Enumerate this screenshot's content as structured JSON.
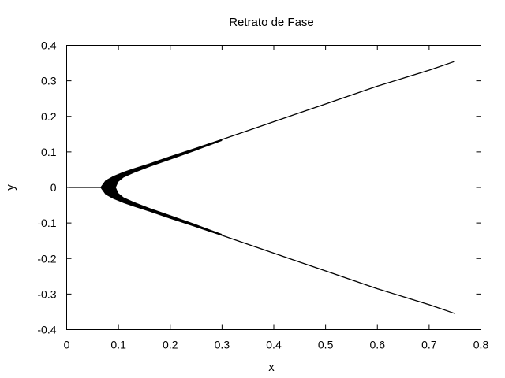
{
  "chart_data": {
    "type": "line",
    "title": "Retrato de Fase",
    "xlabel": "x",
    "ylabel": "y",
    "xlim": [
      0,
      0.8
    ],
    "ylim": [
      -0.4,
      0.4
    ],
    "x_ticks": [
      0,
      0.1,
      0.2,
      0.3,
      0.4,
      0.5,
      0.6,
      0.7,
      0.8
    ],
    "x_tick_labels": [
      "0",
      "0.1",
      "0.2",
      "0.3",
      "0.4",
      "0.5",
      "0.6",
      "0.7",
      "0.8"
    ],
    "y_ticks": [
      0.4,
      0.3,
      0.2,
      0.1,
      0,
      -0.1,
      -0.2,
      -0.3,
      -0.4
    ],
    "y_tick_labels": [
      "0.4",
      "0.3",
      "0.2",
      "0.1",
      "0",
      "-0.1",
      "-0.2",
      "-0.3",
      "-0.4"
    ],
    "grid": false,
    "legend": "none",
    "line_color": "#000000",
    "series": [
      {
        "x": [
          0.005,
          0.07,
          0.08,
          0.1,
          0.13,
          0.15,
          0.2,
          0.25,
          0.3,
          0.4,
          0.5,
          0.6,
          0.7,
          0.75
        ],
        "y": [
          0,
          0,
          0.02,
          0.035,
          0.05,
          0.06,
          0.085,
          0.11,
          0.135,
          0.185,
          0.235,
          0.285,
          0.33,
          0.355
        ]
      },
      {
        "x": [
          0.07,
          0.08,
          0.1,
          0.13,
          0.15,
          0.2,
          0.25,
          0.3,
          0.4,
          0.5,
          0.6,
          0.7,
          0.75
        ],
        "y": [
          0,
          -0.02,
          -0.035,
          -0.05,
          -0.06,
          -0.085,
          -0.11,
          -0.135,
          -0.185,
          -0.235,
          -0.285,
          -0.33,
          -0.355
        ]
      }
    ]
  }
}
